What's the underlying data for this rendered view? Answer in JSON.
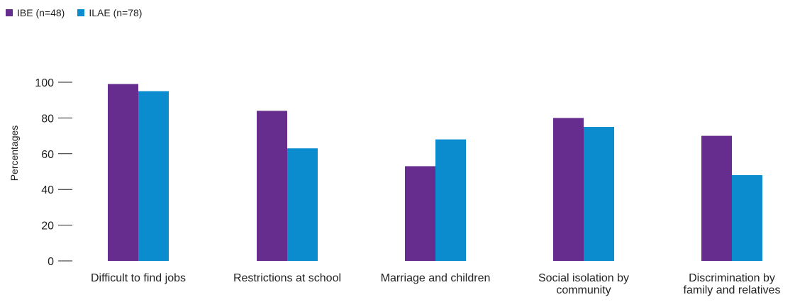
{
  "chart_data": {
    "type": "bar",
    "categories": [
      "Difficult to find jobs",
      "Restrictions at school",
      "Marriage and children",
      "Social isolation by community",
      "Discrimination by family and relatives"
    ],
    "category_lines": [
      [
        "Difficult to find jobs"
      ],
      [
        "Restrictions at school"
      ],
      [
        "Marriage and children"
      ],
      [
        "Social isolation by",
        "community"
      ],
      [
        "Discrimination by",
        "family and relatives"
      ]
    ],
    "series": [
      {
        "name": "IBE (n=48)",
        "color": "#662d8f",
        "values": [
          99,
          84,
          53,
          80,
          70
        ]
      },
      {
        "name": "ILAE (n=78)",
        "color": "#0a8ccf",
        "values": [
          95,
          63,
          68,
          75,
          48
        ]
      }
    ],
    "ylabel": "Percentages",
    "xlabel": "",
    "ylim": [
      0,
      100
    ],
    "yticks": [
      0,
      20,
      40,
      60,
      80,
      100
    ],
    "grid": false,
    "legend": "top-left"
  }
}
